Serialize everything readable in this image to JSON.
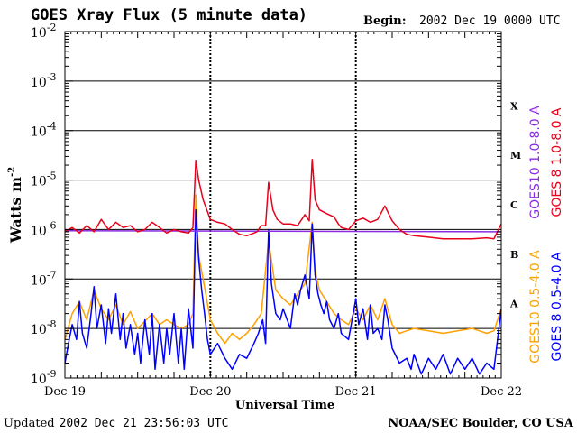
{
  "chart_data": {
    "type": "line",
    "title": "GOES Xray Flux (5 minute data)",
    "begin_label": "Begin:",
    "begin_value": "2002 Dec 19 0000 UTC",
    "xlabel": "Universal Time",
    "ylabel": "Watts m",
    "ylabel_sup": "-2",
    "yscale": "log",
    "ylim": [
      1e-09,
      0.01
    ],
    "xlim_days": [
      0,
      3
    ],
    "x_tick_labels": [
      "Dec 19",
      "Dec 20",
      "Dec 21",
      "Dec 22"
    ],
    "y_tick_labels": [
      {
        "base": "10",
        "exp": "-9"
      },
      {
        "base": "10",
        "exp": "-8"
      },
      {
        "base": "10",
        "exp": "-7"
      },
      {
        "base": "10",
        "exp": "-6"
      },
      {
        "base": "10",
        "exp": "-5"
      },
      {
        "base": "10",
        "exp": "-4"
      },
      {
        "base": "10",
        "exp": "-3"
      },
      {
        "base": "10",
        "exp": "-2"
      }
    ],
    "flare_classes": [
      "A",
      "B",
      "C",
      "M",
      "X"
    ],
    "grid": true,
    "series": [
      {
        "name": "GOES10 1.0-8.0 A",
        "color": "#8a2be2",
        "points": [
          [
            0,
            9.5e-07
          ],
          [
            2.95,
            9e-07
          ],
          [
            3.0,
            9e-07
          ]
        ]
      },
      {
        "name": "GOES 8 1.0-8.0 A",
        "color": "#e8001a",
        "points": [
          [
            0,
            9e-07
          ],
          [
            0.05,
            1.1e-06
          ],
          [
            0.1,
            8.5e-07
          ],
          [
            0.15,
            1.2e-06
          ],
          [
            0.2,
            9e-07
          ],
          [
            0.25,
            1.6e-06
          ],
          [
            0.3,
            1e-06
          ],
          [
            0.35,
            1.4e-06
          ],
          [
            0.4,
            1.1e-06
          ],
          [
            0.45,
            1.2e-06
          ],
          [
            0.5,
            9e-07
          ],
          [
            0.55,
            1e-06
          ],
          [
            0.6,
            1.4e-06
          ],
          [
            0.65,
            1.1e-06
          ],
          [
            0.7,
            8.5e-07
          ],
          [
            0.75,
            1e-06
          ],
          [
            0.8,
            9e-07
          ],
          [
            0.85,
            8.5e-07
          ],
          [
            0.88,
            1.1e-06
          ],
          [
            0.9,
            2.5e-05
          ],
          [
            0.92,
            1e-05
          ],
          [
            0.95,
            4e-06
          ],
          [
            1.0,
            1.6e-06
          ],
          [
            1.05,
            1.4e-06
          ],
          [
            1.1,
            1.3e-06
          ],
          [
            1.15,
            1e-06
          ],
          [
            1.2,
            8e-07
          ],
          [
            1.25,
            7.5e-07
          ],
          [
            1.3,
            8.5e-07
          ],
          [
            1.32,
            9e-07
          ],
          [
            1.35,
            1.2e-06
          ],
          [
            1.38,
            1.2e-06
          ],
          [
            1.4,
            9e-06
          ],
          [
            1.43,
            2.5e-06
          ],
          [
            1.46,
            1.6e-06
          ],
          [
            1.5,
            1.3e-06
          ],
          [
            1.55,
            1.3e-06
          ],
          [
            1.6,
            1.2e-06
          ],
          [
            1.65,
            2e-06
          ],
          [
            1.68,
            1.5e-06
          ],
          [
            1.7,
            2.6e-05
          ],
          [
            1.72,
            4e-06
          ],
          [
            1.75,
            2.5e-06
          ],
          [
            1.8,
            2.1e-06
          ],
          [
            1.85,
            1.8e-06
          ],
          [
            1.88,
            1.3e-06
          ],
          [
            1.9,
            1.1e-06
          ],
          [
            1.95,
            1e-06
          ],
          [
            2.0,
            1.5e-06
          ],
          [
            2.05,
            1.7e-06
          ],
          [
            2.1,
            1.4e-06
          ],
          [
            2.15,
            1.6e-06
          ],
          [
            2.2,
            3e-06
          ],
          [
            2.25,
            1.5e-06
          ],
          [
            2.3,
            1e-06
          ],
          [
            2.35,
            8e-07
          ],
          [
            2.4,
            7.5e-07
          ],
          [
            2.5,
            7e-07
          ],
          [
            2.6,
            6.5e-07
          ],
          [
            2.7,
            6.5e-07
          ],
          [
            2.8,
            6.5e-07
          ],
          [
            2.9,
            6.8e-07
          ],
          [
            2.95,
            6.5e-07
          ],
          [
            3.0,
            1.3e-06
          ]
        ]
      },
      {
        "name": "GOES10 0.5-4.0 A",
        "color": "#ffa000",
        "points": [
          [
            0,
            6e-09
          ],
          [
            0.05,
            2e-08
          ],
          [
            0.1,
            3.5e-08
          ],
          [
            0.15,
            1.5e-08
          ],
          [
            0.2,
            6e-08
          ],
          [
            0.25,
            2.5e-08
          ],
          [
            0.3,
            1.5e-08
          ],
          [
            0.35,
            3e-08
          ],
          [
            0.4,
            1.2e-08
          ],
          [
            0.45,
            2.2e-08
          ],
          [
            0.5,
            1e-08
          ],
          [
            0.55,
            1.4e-08
          ],
          [
            0.6,
            2e-08
          ],
          [
            0.65,
            1.2e-08
          ],
          [
            0.7,
            1.5e-08
          ],
          [
            0.75,
            1.2e-08
          ],
          [
            0.8,
            1e-08
          ],
          [
            0.85,
            1.2e-08
          ],
          [
            0.88,
            2e-08
          ],
          [
            0.9,
            5e-06
          ],
          [
            0.92,
            3e-07
          ],
          [
            0.95,
            1e-07
          ],
          [
            1.0,
            1.5e-08
          ],
          [
            1.05,
            8e-09
          ],
          [
            1.1,
            5e-09
          ],
          [
            1.15,
            8e-09
          ],
          [
            1.2,
            6e-09
          ],
          [
            1.25,
            8e-09
          ],
          [
            1.3,
            1.2e-08
          ],
          [
            1.35,
            2e-08
          ],
          [
            1.4,
            6e-07
          ],
          [
            1.45,
            6e-08
          ],
          [
            1.5,
            4e-08
          ],
          [
            1.55,
            3e-08
          ],
          [
            1.6,
            5e-08
          ],
          [
            1.65,
            8e-08
          ],
          [
            1.7,
            1.4e-06
          ],
          [
            1.72,
            1.5e-07
          ],
          [
            1.75,
            6e-08
          ],
          [
            1.8,
            3.5e-08
          ],
          [
            1.85,
            2e-08
          ],
          [
            1.9,
            1.5e-08
          ],
          [
            1.95,
            1.2e-08
          ],
          [
            2.0,
            2.5e-08
          ],
          [
            2.05,
            1.5e-08
          ],
          [
            2.1,
            3e-08
          ],
          [
            2.15,
            1.5e-08
          ],
          [
            2.2,
            4e-08
          ],
          [
            2.25,
            1.2e-08
          ],
          [
            2.3,
            8e-09
          ],
          [
            2.35,
            9e-09
          ],
          [
            2.4,
            1e-08
          ],
          [
            2.5,
            9e-09
          ],
          [
            2.6,
            8e-09
          ],
          [
            2.7,
            9e-09
          ],
          [
            2.8,
            1e-08
          ],
          [
            2.9,
            8e-09
          ],
          [
            2.95,
            9e-09
          ],
          [
            3.0,
            2.5e-08
          ]
        ]
      },
      {
        "name": "GOES 8 0.5-4.0 A",
        "color": "#0000ff",
        "points": [
          [
            0,
            2e-09
          ],
          [
            0.03,
            6e-09
          ],
          [
            0.05,
            1.2e-08
          ],
          [
            0.08,
            6e-09
          ],
          [
            0.1,
            3.5e-08
          ],
          [
            0.12,
            8e-09
          ],
          [
            0.15,
            4e-09
          ],
          [
            0.18,
            2e-08
          ],
          [
            0.2,
            7e-08
          ],
          [
            0.22,
            1e-08
          ],
          [
            0.25,
            3e-08
          ],
          [
            0.28,
            5e-09
          ],
          [
            0.3,
            2.5e-08
          ],
          [
            0.32,
            8e-09
          ],
          [
            0.35,
            5e-08
          ],
          [
            0.38,
            6e-09
          ],
          [
            0.4,
            2e-08
          ],
          [
            0.42,
            4e-09
          ],
          [
            0.45,
            1.2e-08
          ],
          [
            0.48,
            3e-09
          ],
          [
            0.5,
            8e-09
          ],
          [
            0.52,
            2e-09
          ],
          [
            0.55,
            1.5e-08
          ],
          [
            0.58,
            3e-09
          ],
          [
            0.6,
            2e-08
          ],
          [
            0.62,
            1.5e-09
          ],
          [
            0.65,
            1.2e-08
          ],
          [
            0.68,
            2e-09
          ],
          [
            0.7,
            1e-08
          ],
          [
            0.72,
            3e-09
          ],
          [
            0.75,
            2e-08
          ],
          [
            0.78,
            2e-09
          ],
          [
            0.8,
            1e-08
          ],
          [
            0.82,
            1.5e-09
          ],
          [
            0.85,
            2.5e-08
          ],
          [
            0.88,
            4e-09
          ],
          [
            0.9,
            2.5e-06
          ],
          [
            0.92,
            2.5e-07
          ],
          [
            0.94,
            6e-08
          ],
          [
            0.96,
            2e-08
          ],
          [
            0.98,
            6e-09
          ],
          [
            1.0,
            3e-09
          ],
          [
            1.05,
            5e-09
          ],
          [
            1.1,
            2.5e-09
          ],
          [
            1.15,
            1.5e-09
          ],
          [
            1.2,
            3e-09
          ],
          [
            1.25,
            2.5e-09
          ],
          [
            1.3,
            5e-09
          ],
          [
            1.33,
            8e-09
          ],
          [
            1.36,
            1.5e-08
          ],
          [
            1.38,
            5e-09
          ],
          [
            1.4,
            1e-06
          ],
          [
            1.42,
            8e-08
          ],
          [
            1.45,
            2e-08
          ],
          [
            1.48,
            1.5e-08
          ],
          [
            1.5,
            2.5e-08
          ],
          [
            1.55,
            1e-08
          ],
          [
            1.58,
            5e-08
          ],
          [
            1.6,
            3e-08
          ],
          [
            1.62,
            6e-08
          ],
          [
            1.65,
            1.2e-07
          ],
          [
            1.68,
            4e-08
          ],
          [
            1.7,
            1.3e-06
          ],
          [
            1.72,
            1.2e-07
          ],
          [
            1.74,
            5e-08
          ],
          [
            1.76,
            3e-08
          ],
          [
            1.78,
            2e-08
          ],
          [
            1.8,
            3.5e-08
          ],
          [
            1.82,
            1.5e-08
          ],
          [
            1.85,
            1e-08
          ],
          [
            1.88,
            2e-08
          ],
          [
            1.9,
            8e-09
          ],
          [
            1.95,
            6e-09
          ],
          [
            2.0,
            4e-08
          ],
          [
            2.02,
            1.2e-08
          ],
          [
            2.05,
            2.5e-08
          ],
          [
            2.08,
            6e-09
          ],
          [
            2.1,
            3e-08
          ],
          [
            2.12,
            8e-09
          ],
          [
            2.15,
            1e-08
          ],
          [
            2.18,
            6e-09
          ],
          [
            2.2,
            3e-08
          ],
          [
            2.22,
            1.5e-08
          ],
          [
            2.25,
            4e-09
          ],
          [
            2.3,
            2e-09
          ],
          [
            2.35,
            2.5e-09
          ],
          [
            2.38,
            1.5e-09
          ],
          [
            2.4,
            3e-09
          ],
          [
            2.45,
            1.2e-09
          ],
          [
            2.5,
            2.5e-09
          ],
          [
            2.55,
            1.5e-09
          ],
          [
            2.6,
            3e-09
          ],
          [
            2.65,
            1.2e-09
          ],
          [
            2.7,
            2.5e-09
          ],
          [
            2.75,
            1.5e-09
          ],
          [
            2.8,
            2.5e-09
          ],
          [
            2.85,
            1.2e-09
          ],
          [
            2.9,
            2e-09
          ],
          [
            2.95,
            1.5e-09
          ],
          [
            3.0,
            2.5e-08
          ]
        ]
      }
    ],
    "footer_left_prefix": "Updated",
    "footer_left_value": "2002 Dec 21 23:56:03 UTC",
    "footer_right": "NOAA/SEC Boulder, CO USA"
  }
}
